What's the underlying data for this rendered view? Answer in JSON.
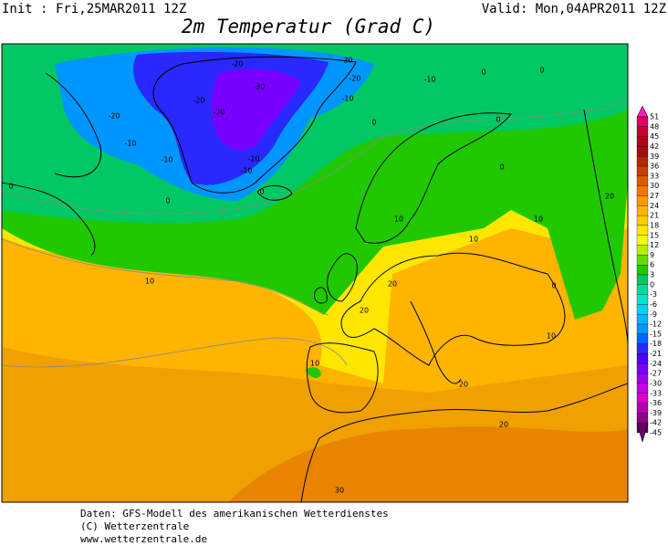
{
  "header": {
    "init": "Init : Fri,25MAR2011  12Z",
    "valid": "Valid:  Mon,04APR2011  12Z",
    "title": "2m Temperatur (Grad C)"
  },
  "legend": {
    "levels": [
      {
        "value": 51,
        "color": "#f020b4"
      },
      {
        "value": 48,
        "color": "#e00064"
      },
      {
        "value": 45,
        "color": "#c80032"
      },
      {
        "value": 42,
        "color": "#b40014"
      },
      {
        "value": 39,
        "color": "#a01010"
      },
      {
        "value": 36,
        "color": "#b42800"
      },
      {
        "value": 33,
        "color": "#c84000"
      },
      {
        "value": 30,
        "color": "#dc5a00"
      },
      {
        "value": 27,
        "color": "#f07800"
      },
      {
        "value": 24,
        "color": "#ff9600"
      },
      {
        "value": 21,
        "color": "#ffb400"
      },
      {
        "value": 18,
        "color": "#ffcc00"
      },
      {
        "value": 15,
        "color": "#ffe600"
      },
      {
        "value": 12,
        "color": "#f0ff00"
      },
      {
        "value": 9,
        "color": "#b4f000"
      },
      {
        "value": 6,
        "color": "#64dc00"
      },
      {
        "value": 3,
        "color": "#20c800"
      },
      {
        "value": 0,
        "color": "#00c864"
      },
      {
        "value": -3,
        "color": "#00dca0"
      },
      {
        "value": -6,
        "color": "#00e6c8"
      },
      {
        "value": -9,
        "color": "#00d2f0"
      },
      {
        "value": -12,
        "color": "#00b4ff"
      },
      {
        "value": -15,
        "color": "#0096ff"
      },
      {
        "value": -18,
        "color": "#0064ff"
      },
      {
        "value": -21,
        "color": "#2828ff"
      },
      {
        "value": -24,
        "color": "#5000ff"
      },
      {
        "value": -27,
        "color": "#7800ff"
      },
      {
        "value": -30,
        "color": "#a000f0"
      },
      {
        "value": -33,
        "color": "#c800e6"
      },
      {
        "value": -36,
        "color": "#dc00c8"
      },
      {
        "value": -39,
        "color": "#b400b4"
      },
      {
        "value": -42,
        "color": "#8c008c"
      },
      {
        "value": -45,
        "color": "#640064"
      }
    ]
  },
  "contour_labels": [
    "-20",
    "-10",
    "-10",
    "0",
    "-20",
    "-30",
    "-20",
    "-30",
    "-10",
    "-10",
    "0",
    "0",
    "-20",
    "-20",
    "-20",
    "-10",
    "0",
    "0",
    "0",
    "0",
    "0",
    "10",
    "10",
    "10",
    "10",
    "20",
    "20",
    "10",
    "20",
    "20",
    "10",
    "0",
    "20",
    "30"
  ],
  "footer": {
    "line1": "Daten: GFS-Modell des amerikanischen Wetterdienstes",
    "line2": "(C) Wetterzentrale",
    "line3": "www.wetterzentrale.de"
  }
}
